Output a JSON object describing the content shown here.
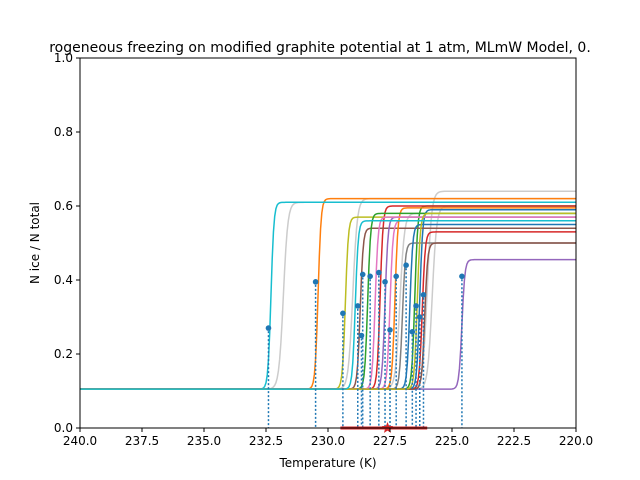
{
  "chart_data": {
    "type": "line",
    "title": "rogeneous freezing on modified graphite potential at 1 atm, MLmW Model, 0.",
    "xlabel": "Temperature (K)",
    "ylabel": "N ice / N total",
    "xlim": [
      240.0,
      220.0
    ],
    "ylim": [
      0.0,
      1.0
    ],
    "x_ticks": [
      "240.0",
      "237.5",
      "235.0",
      "232.5",
      "230.0",
      "227.5",
      "225.0",
      "222.5",
      "220.0"
    ],
    "y_ticks": [
      "0.0",
      "0.2",
      "0.4",
      "0.6",
      "0.8",
      "1.0"
    ],
    "grid": false,
    "baseline": 0.105,
    "series": [
      {
        "color": "#1f77b4",
        "t_freeze": 226.3,
        "plateau": 0.59
      },
      {
        "color": "#ff7f0e",
        "t_freeze": 230.4,
        "plateau": 0.62
      },
      {
        "color": "#2ca02c",
        "t_freeze": 226.5,
        "plateau": 0.6
      },
      {
        "color": "#d62728",
        "t_freeze": 227.9,
        "plateau": 0.6
      },
      {
        "color": "#9467bd",
        "t_freeze": 224.6,
        "plateau": 0.455
      },
      {
        "color": "#8c564b",
        "t_freeze": 228.7,
        "plateau": 0.54
      },
      {
        "color": "#e377c2",
        "t_freeze": 227.5,
        "plateau": 0.56
      },
      {
        "color": "#7f7f7f",
        "t_freeze": 227.0,
        "plateau": 0.5
      },
      {
        "color": "#bcbd22",
        "t_freeze": 229.3,
        "plateau": 0.57
      },
      {
        "color": "#17becf",
        "t_freeze": 232.3,
        "plateau": 0.61
      },
      {
        "color": "#1f77b4",
        "t_freeze": 226.7,
        "plateau": 0.55
      },
      {
        "color": "#ff7f0e",
        "t_freeze": 227.3,
        "plateau": 0.595
      },
      {
        "color": "#2ca02c",
        "t_freeze": 228.4,
        "plateau": 0.58
      },
      {
        "color": "#d62728",
        "t_freeze": 226.2,
        "plateau": 0.53
      },
      {
        "color": "#9467bd",
        "t_freeze": 227.7,
        "plateau": 0.57
      },
      {
        "color": "#8c564b",
        "t_freeze": 226.1,
        "plateau": 0.5
      },
      {
        "color": "#e377c2",
        "t_freeze": 228.1,
        "plateau": 0.57
      },
      {
        "color": "#bcbd22",
        "t_freeze": 226.4,
        "plateau": 0.58
      },
      {
        "color": "#17becf",
        "t_freeze": 228.9,
        "plateau": 0.56
      }
    ],
    "gray_series": [
      {
        "color": "#cccccc",
        "t_freeze": 231.8,
        "plateau": 0.61
      },
      {
        "color": "#cccccc",
        "t_freeze": 229.0,
        "plateau": 0.62
      },
      {
        "color": "#cccccc",
        "t_freeze": 226.0,
        "plateau": 0.64
      },
      {
        "color": "#cccccc",
        "t_freeze": 225.8,
        "plateau": 0.6
      },
      {
        "color": "#cccccc",
        "t_freeze": 227.1,
        "plateau": 0.58
      }
    ],
    "midpoints": [
      {
        "x": 232.4,
        "y": 0.27
      },
      {
        "x": 230.5,
        "y": 0.395
      },
      {
        "x": 229.4,
        "y": 0.31
      },
      {
        "x": 228.8,
        "y": 0.33
      },
      {
        "x": 228.65,
        "y": 0.25
      },
      {
        "x": 228.6,
        "y": 0.415
      },
      {
        "x": 228.3,
        "y": 0.41
      },
      {
        "x": 227.95,
        "y": 0.42
      },
      {
        "x": 227.7,
        "y": 0.395
      },
      {
        "x": 227.5,
        "y": 0.265
      },
      {
        "x": 227.25,
        "y": 0.41
      },
      {
        "x": 226.85,
        "y": 0.44
      },
      {
        "x": 226.6,
        "y": 0.26
      },
      {
        "x": 226.45,
        "y": 0.33
      },
      {
        "x": 226.3,
        "y": 0.3
      },
      {
        "x": 226.15,
        "y": 0.36
      },
      {
        "x": 224.6,
        "y": 0.41
      }
    ],
    "mean_marker": {
      "x": 227.6,
      "y": 0.0,
      "color": "#d62728"
    },
    "range_bar": {
      "x_start": 229.5,
      "x_end": 226.0,
      "y": 0.0,
      "color": "#d62728"
    }
  }
}
